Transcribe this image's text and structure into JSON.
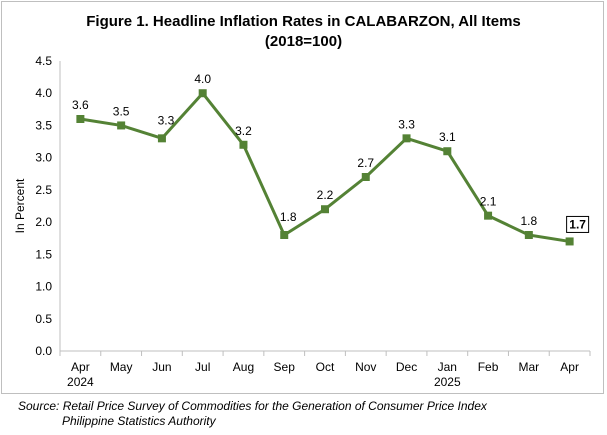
{
  "chart_data": {
    "type": "line",
    "title": "Figure 1. Headline Inflation Rates in CALABARZON, All Items",
    "subtitle": "(2018=100)",
    "ylabel": "In Percent",
    "xlabel": "",
    "ylim": [
      0,
      4.5
    ],
    "yticks": [
      "0.0",
      "0.5",
      "1.0",
      "1.5",
      "2.0",
      "2.5",
      "3.0",
      "3.5",
      "4.0",
      "4.5"
    ],
    "grid": false,
    "legend": "none",
    "categories": [
      "Apr",
      "May",
      "Jun",
      "Jul",
      "Aug",
      "Sep",
      "Oct",
      "Nov",
      "Dec",
      "Jan",
      "Feb",
      "Mar",
      "Apr"
    ],
    "year_labels": [
      "2024",
      "",
      "",
      "",
      "",
      "",
      "",
      "",
      "",
      "2025",
      "",
      "",
      ""
    ],
    "series": [
      {
        "values": [
          3.6,
          3.5,
          3.3,
          4.0,
          3.2,
          1.8,
          2.2,
          2.7,
          3.3,
          3.1,
          2.1,
          1.8,
          1.7
        ],
        "data_labels": [
          "3.6",
          "3.5",
          "3.3",
          "4.0",
          "3.2",
          "1.8",
          "2.2",
          "2.7",
          "3.3",
          "3.1",
          "2.1",
          "1.8",
          "1.7"
        ],
        "color": "#548235"
      }
    ],
    "highlighted_point_index": 12
  },
  "source": {
    "prefix": "Source:",
    "line1": "Retail Price Survey of Commodities for the Generation of Consumer Price Index",
    "line2": "Philippine Statistics Authority"
  }
}
